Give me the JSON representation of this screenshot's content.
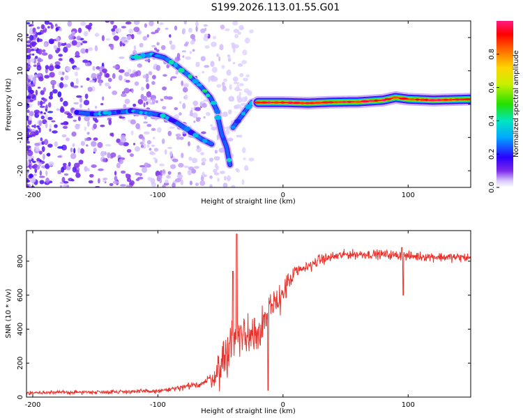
{
  "title": "S199.2026.113.01.55.G01",
  "chart_data": [
    {
      "type": "heatmap",
      "name": "spectrogram",
      "xlabel": "Height of straight line (km)",
      "ylabel": "Frequency (Hz)",
      "xlim": [
        -205,
        150
      ],
      "ylim": [
        -25,
        25
      ],
      "xticks": [
        -200,
        -100,
        0,
        100
      ],
      "yticks": [
        -20,
        -10,
        0,
        10,
        20
      ],
      "colorbar": {
        "label": "Normalized spectral amplitude",
        "range": [
          0,
          1
        ],
        "ticks": [
          "0.0",
          "0.2",
          "0.4",
          "0.6",
          "0.8"
        ],
        "tick_values": [
          0.0,
          0.2,
          0.4,
          0.6,
          0.8
        ]
      },
      "traces": [
        {
          "name": "lower-branch",
          "points": [
            [
              -165,
              -2.5
            ],
            [
              -150,
              -3
            ],
            [
              -135,
              -2.5
            ],
            [
              -120,
              -2
            ],
            [
              -105,
              -2.8
            ],
            [
              -95,
              -3.5
            ],
            [
              -85,
              -5.5
            ],
            [
              -75,
              -8
            ],
            [
              -65,
              -10.5
            ],
            [
              -57,
              -12
            ]
          ],
          "amp": 0.3
        },
        {
          "name": "upper-branch",
          "points": [
            [
              -120,
              14
            ],
            [
              -105,
              15
            ],
            [
              -95,
              14
            ],
            [
              -85,
              11.5
            ],
            [
              -75,
              8.5
            ],
            [
              -65,
              5
            ],
            [
              -58,
              2
            ],
            [
              -52,
              -2.5
            ]
          ],
          "amp": 0.35
        },
        {
          "name": "dip",
          "points": [
            [
              -52,
              -4
            ],
            [
              -49,
              -9
            ],
            [
              -45,
              -13
            ],
            [
              -43,
              -17
            ],
            [
              -42,
              -19
            ]
          ],
          "amp": 0.35
        },
        {
          "name": "rise",
          "points": [
            [
              -40,
              -7
            ],
            [
              -35,
              -4.5
            ],
            [
              -30,
              -2
            ],
            [
              -25,
              0.5
            ],
            [
              -20,
              1
            ]
          ],
          "amp": 0.3
        },
        {
          "name": "carrier",
          "points": [
            [
              -20,
              0.5
            ],
            [
              0,
              0.5
            ],
            [
              20,
              0.3
            ],
            [
              40,
              0.6
            ],
            [
              60,
              0.7
            ],
            [
              80,
              1.2
            ],
            [
              90,
              2
            ],
            [
              100,
              1.5
            ],
            [
              120,
              1.2
            ],
            [
              150,
              1.5
            ]
          ],
          "amp": 0.95
        }
      ]
    },
    {
      "type": "line",
      "name": "snr",
      "xlabel": "Height of straight line (km)",
      "ylabel": "SNR (10 * v/v)",
      "xlim": [
        -205,
        150
      ],
      "ylim": [
        0,
        980
      ],
      "xticks": [
        -200,
        -100,
        0,
        100
      ],
      "yticks": [
        0,
        200,
        400,
        600,
        800
      ],
      "color": "#e8312a",
      "trend": [
        [
          -205,
          25
        ],
        [
          -150,
          30
        ],
        [
          -100,
          35
        ],
        [
          -80,
          55
        ],
        [
          -65,
          80
        ],
        [
          -55,
          120
        ],
        [
          -50,
          180
        ],
        [
          -45,
          260
        ],
        [
          -40,
          340
        ],
        [
          -35,
          360
        ],
        [
          -30,
          360
        ],
        [
          -25,
          380
        ],
        [
          -20,
          400
        ],
        [
          -15,
          450
        ],
        [
          -10,
          500
        ],
        [
          -5,
          560
        ],
        [
          0,
          620
        ],
        [
          5,
          680
        ],
        [
          10,
          730
        ],
        [
          20,
          770
        ],
        [
          30,
          810
        ],
        [
          50,
          840
        ],
        [
          80,
          840
        ],
        [
          100,
          830
        ],
        [
          150,
          820
        ]
      ],
      "noise": [
        [
          -205,
          15
        ],
        [
          -100,
          20
        ],
        [
          -60,
          40
        ],
        [
          -45,
          230
        ],
        [
          -30,
          220
        ],
        [
          -10,
          180
        ],
        [
          5,
          90
        ],
        [
          20,
          50
        ],
        [
          50,
          40
        ],
        [
          150,
          40
        ]
      ],
      "features": [
        {
          "x": -37,
          "value": 960
        },
        {
          "x": -40,
          "value": 740
        },
        {
          "x": -12,
          "value": 40
        },
        {
          "x": 95,
          "value": 880
        },
        {
          "x": 96,
          "value": 600
        }
      ]
    }
  ]
}
